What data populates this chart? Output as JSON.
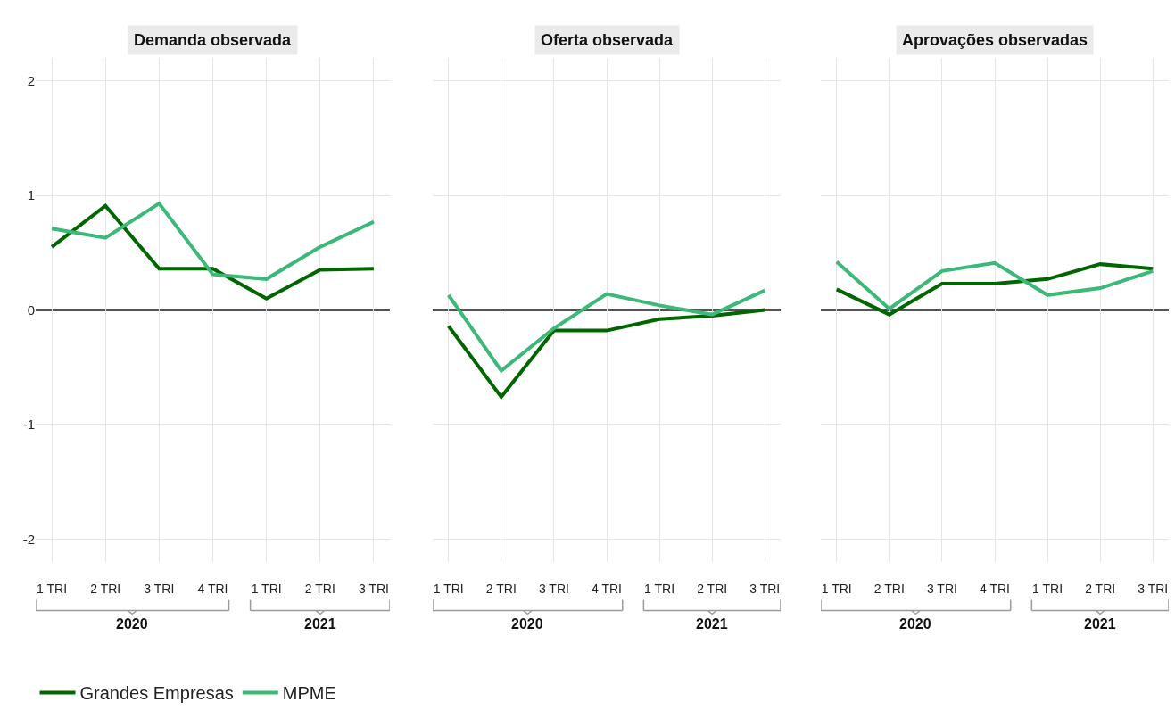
{
  "chart_data": [
    {
      "type": "line",
      "title": "Demanda observada",
      "categories": [
        "1 TRI",
        "2 TRI",
        "3 TRI",
        "4 TRI",
        "1 TRI",
        "2 TRI",
        "3 TRI"
      ],
      "ylim": [
        -2.2,
        2.2
      ],
      "yticks": [
        -2,
        -1,
        0,
        1,
        2
      ],
      "grid": true,
      "legend": "bottom left",
      "series": [
        {
          "name": "Grandes Empresas",
          "color": "#006600",
          "values": [
            0.55,
            0.91,
            0.36,
            0.36,
            0.1,
            0.35,
            0.36
          ]
        },
        {
          "name": "MPME",
          "color": "#3cb878",
          "values": [
            0.71,
            0.63,
            0.93,
            0.31,
            0.27,
            0.55,
            0.77
          ]
        }
      ],
      "ref_lines": [
        {
          "axis": "y",
          "value": 0,
          "color": "#555555"
        }
      ],
      "annotations": [
        "2020",
        "2021"
      ]
    },
    {
      "type": "line",
      "title": "Oferta observada",
      "categories": [
        "1 TRI",
        "2 TRI",
        "3 TRI",
        "4 TRI",
        "1 TRI",
        "2 TRI",
        "3 TRI"
      ],
      "ylim": [
        -2.2,
        2.2
      ],
      "yticks": [
        -2,
        -1,
        0,
        1,
        2
      ],
      "grid": true,
      "tick_labels": "x",
      "series": [
        {
          "color": "#006600",
          "values": [
            -0.14,
            -0.76,
            -0.18,
            -0.18,
            -0.08,
            -0.05,
            0
          ]
        },
        {
          "color": "#3cb878",
          "values": [
            0.13,
            -0.53,
            -0.16,
            0.14,
            0.04,
            -0.04,
            0.17
          ]
        }
      ],
      "ref_lines": [
        {
          "axis": "y",
          "value": 0,
          "color": "#555555"
        }
      ],
      "annotations": [
        "2020",
        "2021"
      ]
    },
    {
      "type": "line",
      "title": "Aprovações observadas",
      "categories": [
        "1 TRI",
        "2 TRI",
        "3 TRI",
        "4 TRI",
        "1 TRI",
        "2 TRI",
        "3 TRI"
      ],
      "ylim": [
        -2.2,
        2.2
      ],
      "yticks": [
        -2,
        -1,
        0,
        1,
        2
      ],
      "grid": true,
      "tick_labels": "x",
      "series": [
        {
          "color": "#006600",
          "values": [
            0.18,
            -0.04,
            0.23,
            0.23,
            0.27,
            0.4,
            0.36
          ]
        },
        {
          "color": "#3cb878",
          "values": [
            0.42,
            0.01,
            0.34,
            0.41,
            0.13,
            0.19,
            0.34
          ]
        }
      ],
      "ref_lines": [
        {
          "axis": "y",
          "value": 0,
          "color": "#555555"
        }
      ],
      "annotations": [
        "2020",
        "2021"
      ]
    }
  ]
}
